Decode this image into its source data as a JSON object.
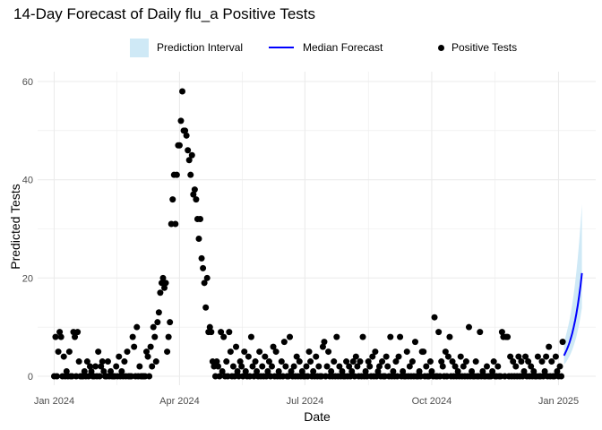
{
  "chart_data": {
    "type": "scatter",
    "title": "14-Day Forecast of Daily flu_a Positive Tests",
    "xlabel": "Date",
    "ylabel": "Predicted Tests",
    "ylim": [
      0,
      60
    ],
    "xlim": [
      "2023-12-20",
      "2025-01-28"
    ],
    "y_ticks": [
      "0",
      "20",
      "40",
      "60"
    ],
    "x_ticks": [
      {
        "date": "2024-01-01",
        "label": "Jan 2024"
      },
      {
        "date": "2024-04-01",
        "label": "Apr 2024"
      },
      {
        "date": "2024-07-01",
        "label": "Jul 2024"
      },
      {
        "date": "2024-10-01",
        "label": "Oct 2024"
      },
      {
        "date": "2025-01-01",
        "label": "Jan 2025"
      }
    ],
    "grid": true,
    "legend_position": "top",
    "legend": [
      "Prediction Interval",
      "Median Forecast",
      "Positive Tests"
    ],
    "colors": {
      "interval": "#cfe9f6",
      "median": "#0000ff",
      "points": "#000000"
    },
    "observed": {
      "name": "Positive Tests",
      "date_range": [
        "2024-01-01",
        "2025-01-04"
      ],
      "daily_values": [
        0,
        8,
        0,
        5,
        9,
        8,
        0,
        4,
        0,
        1,
        0,
        5,
        0,
        0,
        9,
        8,
        0,
        9,
        3,
        0,
        0,
        0,
        1,
        0,
        3,
        0,
        2,
        1,
        0,
        0,
        2,
        0,
        5,
        0,
        2,
        3,
        1,
        0,
        0,
        3,
        0,
        1,
        0,
        0,
        0,
        2,
        0,
        4,
        0,
        1,
        0,
        3,
        0,
        5,
        0,
        0,
        0,
        8,
        6,
        0,
        10,
        0,
        2,
        0,
        0,
        0,
        0,
        5,
        4,
        0,
        6,
        2,
        10,
        8,
        3,
        11,
        13,
        17,
        19,
        20,
        18,
        19,
        5,
        8,
        11,
        31,
        36,
        41,
        31,
        41,
        47,
        47,
        52,
        58,
        50,
        50,
        49,
        46,
        44,
        41,
        45,
        37,
        38,
        36,
        32,
        28,
        32,
        24,
        22,
        19,
        14,
        20,
        9,
        10,
        9,
        3,
        2,
        0,
        3,
        2,
        0,
        9,
        1,
        8,
        0,
        3,
        0,
        9,
        5,
        0,
        2,
        0,
        6,
        1,
        0,
        3,
        2,
        0,
        5,
        1,
        0,
        4,
        0,
        8,
        2,
        0,
        3,
        1,
        0,
        5,
        0,
        2,
        0,
        4,
        0,
        1,
        3,
        0,
        2,
        6,
        0,
        5,
        0,
        1,
        0,
        3,
        0,
        7,
        2,
        0,
        0,
        8,
        1,
        0,
        2,
        0,
        4,
        0,
        3,
        0,
        1,
        0,
        0,
        2,
        0,
        5,
        3,
        0,
        1,
        0,
        4,
        0,
        2,
        0,
        0,
        6,
        7,
        0,
        2,
        5,
        0,
        1,
        0,
        3,
        0,
        8,
        0,
        2,
        0,
        1,
        0,
        0,
        3,
        0,
        2,
        0,
        1,
        3,
        0,
        4,
        2,
        0,
        3,
        0,
        8,
        0,
        1,
        0,
        3,
        2,
        0,
        4,
        0,
        5,
        0,
        1,
        2,
        0,
        3,
        0,
        0,
        4,
        2,
        0,
        8,
        0,
        1,
        0,
        3,
        0,
        4,
        8,
        0,
        1,
        0,
        0,
        5,
        0,
        2,
        0,
        3,
        0,
        7,
        0,
        0,
        1,
        0,
        5,
        5,
        0,
        2,
        0,
        0,
        3,
        1,
        0,
        12,
        0,
        0,
        9,
        0,
        3,
        2,
        0,
        5,
        0,
        4,
        8,
        0,
        3,
        0,
        2,
        0,
        1,
        0,
        4,
        0,
        2,
        0,
        3,
        0,
        10,
        0,
        1,
        0,
        0,
        3,
        0,
        0,
        9,
        0,
        1,
        0,
        0,
        2,
        0,
        0,
        0,
        1,
        3,
        0,
        0,
        2,
        0,
        0,
        9,
        8,
        0,
        8,
        8,
        0,
        4,
        0,
        3,
        0,
        2,
        0,
        4,
        0,
        3,
        0,
        1,
        4,
        0,
        3,
        0,
        2,
        0,
        1,
        0,
        0,
        4,
        0,
        0,
        3,
        0,
        1,
        4,
        0,
        6,
        0,
        3,
        0,
        0,
        4,
        1,
        0,
        2,
        0,
        7
      ]
    },
    "forecast": {
      "date_range": [
        "2025-01-05",
        "2025-01-18"
      ],
      "median": [
        4.2,
        4.8,
        5.4,
        6.1,
        6.9,
        7.8,
        8.8,
        10.0,
        11.3,
        12.8,
        14.5,
        16.4,
        18.5,
        21.0
      ],
      "lower": [
        2.4,
        2.7,
        3.1,
        3.6,
        4.1,
        4.7,
        5.4,
        6.2,
        7.1,
        8.1,
        9.3,
        10.6,
        12.2,
        14.0
      ],
      "upper": [
        7.0,
        7.9,
        9.0,
        10.2,
        11.5,
        13.0,
        14.7,
        16.7,
        18.9,
        21.4,
        24.2,
        27.4,
        31.0,
        35.0
      ]
    }
  }
}
